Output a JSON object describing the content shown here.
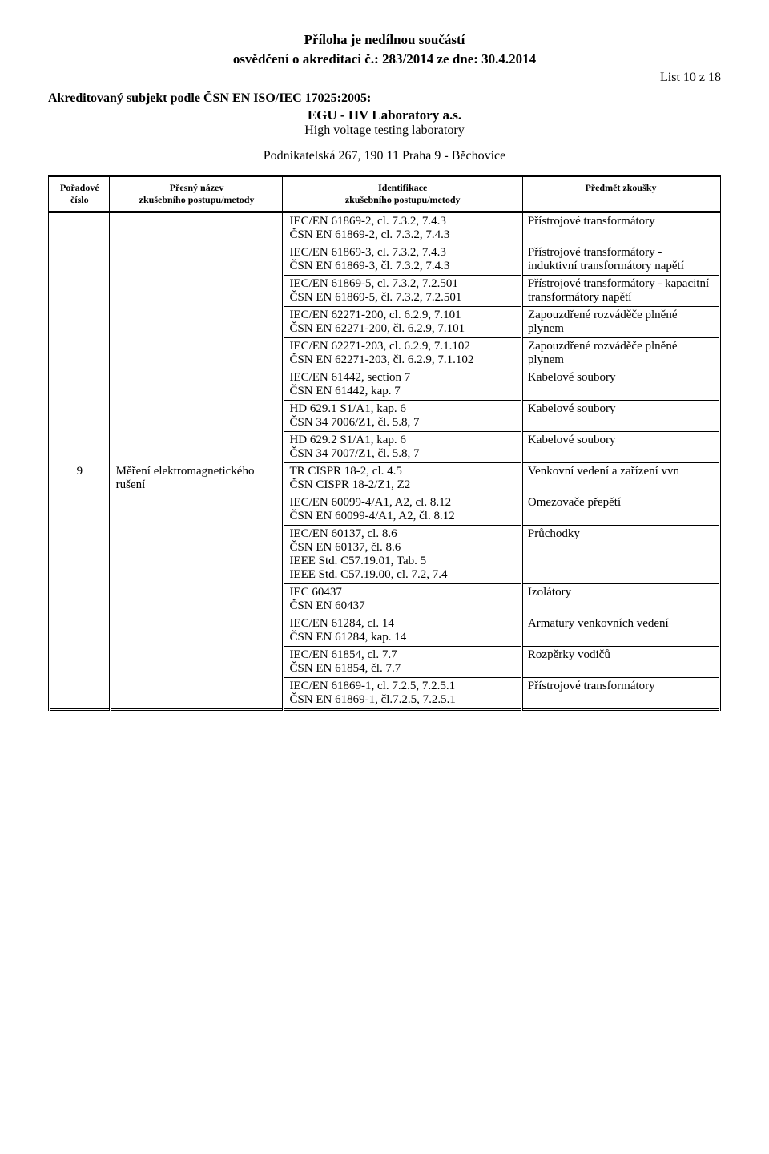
{
  "header": {
    "line1": "Příloha je nedílnou součástí",
    "line2": "osvědčení o akreditaci č.: 283/2014  ze dne: 30.4.2014",
    "page": "List 10 z 18",
    "sub1": "Akreditovaný subjekt podle ČSN EN ISO/IEC 17025:2005:",
    "lab": "EGU - HV Laboratory a.s.",
    "lab2": "High voltage testing laboratory",
    "addr": "Podnikatelská 267, 190 11  Praha 9 - Běchovice"
  },
  "cols": {
    "c1a": "Pořadové",
    "c1b": "číslo",
    "c2a": "Přesný název",
    "c2b": "zkušebního postupu/metody",
    "c3a": "Identifikace",
    "c3b": "zkušebního postupu/metody",
    "c4": "Předmět zkoušky"
  },
  "rows": [
    {
      "num": "",
      "name": "",
      "id": "IEC/EN 61869-2, cl. 7.3.2, 7.4.3\nČSN EN 61869-2, cl. 7.3.2, 7.4.3",
      "pred": "Přístrojové transformátory"
    },
    {
      "num": "",
      "name": "",
      "id": "IEC/EN 61869-3, cl. 7.3.2, 7.4.3\nČSN EN 61869-3, čl. 7.3.2, 7.4.3",
      "pred": "Přístrojové transformátory - induktivní transformátory napětí"
    },
    {
      "num": "",
      "name": "",
      "id": "IEC/EN 61869-5, cl. 7.3.2, 7.2.501\nČSN EN 61869-5, čl. 7.3.2, 7.2.501",
      "pred": "Přístrojové transformátory - kapacitní transformátory napětí"
    },
    {
      "num": "",
      "name": "",
      "id": "IEC/EN 62271-200, cl. 6.2.9, 7.101\nČSN EN 62271-200, čl. 6.2.9, 7.101",
      "pred": "Zapouzdřené rozváděče plněné plynem"
    },
    {
      "num": "",
      "name": "",
      "id": "IEC/EN 62271-203, cl. 6.2.9, 7.1.102\nČSN EN 62271-203, čl. 6.2.9, 7.1.102",
      "pred": "Zapouzdřené rozváděče plněné plynem"
    },
    {
      "num": "",
      "name": "",
      "id": "IEC/EN 61442, section 7\nČSN EN 61442, kap. 7",
      "pred": "Kabelové soubory"
    },
    {
      "num": "",
      "name": "",
      "id": "HD 629.1 S1/A1, kap. 6\nČSN 34 7006/Z1, čl. 5.8, 7",
      "pred": "Kabelové soubory"
    },
    {
      "num": "",
      "name": "",
      "id": "HD 629.2 S1/A1, kap. 6\nČSN 34 7007/Z1, čl. 5.8, 7",
      "pred": "Kabelové soubory"
    },
    {
      "num": "9",
      "name": "Měření elektromagnetického rušení",
      "id": "TR CISPR 18-2, cl. 4.5\nČSN CISPR 18-2/Z1, Z2",
      "pred": "Venkovní vedení a zařízení vvn"
    },
    {
      "num": "",
      "name": "",
      "id": "IEC/EN 60099-4/A1, A2, cl. 8.12\nČSN EN 60099-4/A1, A2, čl. 8.12",
      "pred": "Omezovače přepětí"
    },
    {
      "num": "",
      "name": "",
      "id": "IEC/EN 60137, cl. 8.6\nČSN EN 60137, čl. 8.6\nIEEE Std. C57.19.01, Tab. 5\nIEEE Std. C57.19.00, cl. 7.2, 7.4",
      "pred": "Průchodky"
    },
    {
      "num": "",
      "name": "",
      "id": "IEC 60437\nČSN EN 60437",
      "pred": "Izolátory"
    },
    {
      "num": "",
      "name": "",
      "id": "IEC/EN 61284, cl. 14\nČSN EN 61284, kap. 14",
      "pred": "Armatury venkovních vedení"
    },
    {
      "num": "",
      "name": "",
      "id": "IEC/EN 61854, cl. 7.7\nČSN EN 61854, čl. 7.7",
      "pred": "Rozpěrky vodičů"
    },
    {
      "num": "",
      "name": "",
      "id": "IEC/EN 61869-1, cl. 7.2.5, 7.2.5.1\nČSN EN 61869-1, čl.7.2.5, 7.2.5.1",
      "pred": "Přístrojové transformátory"
    }
  ]
}
